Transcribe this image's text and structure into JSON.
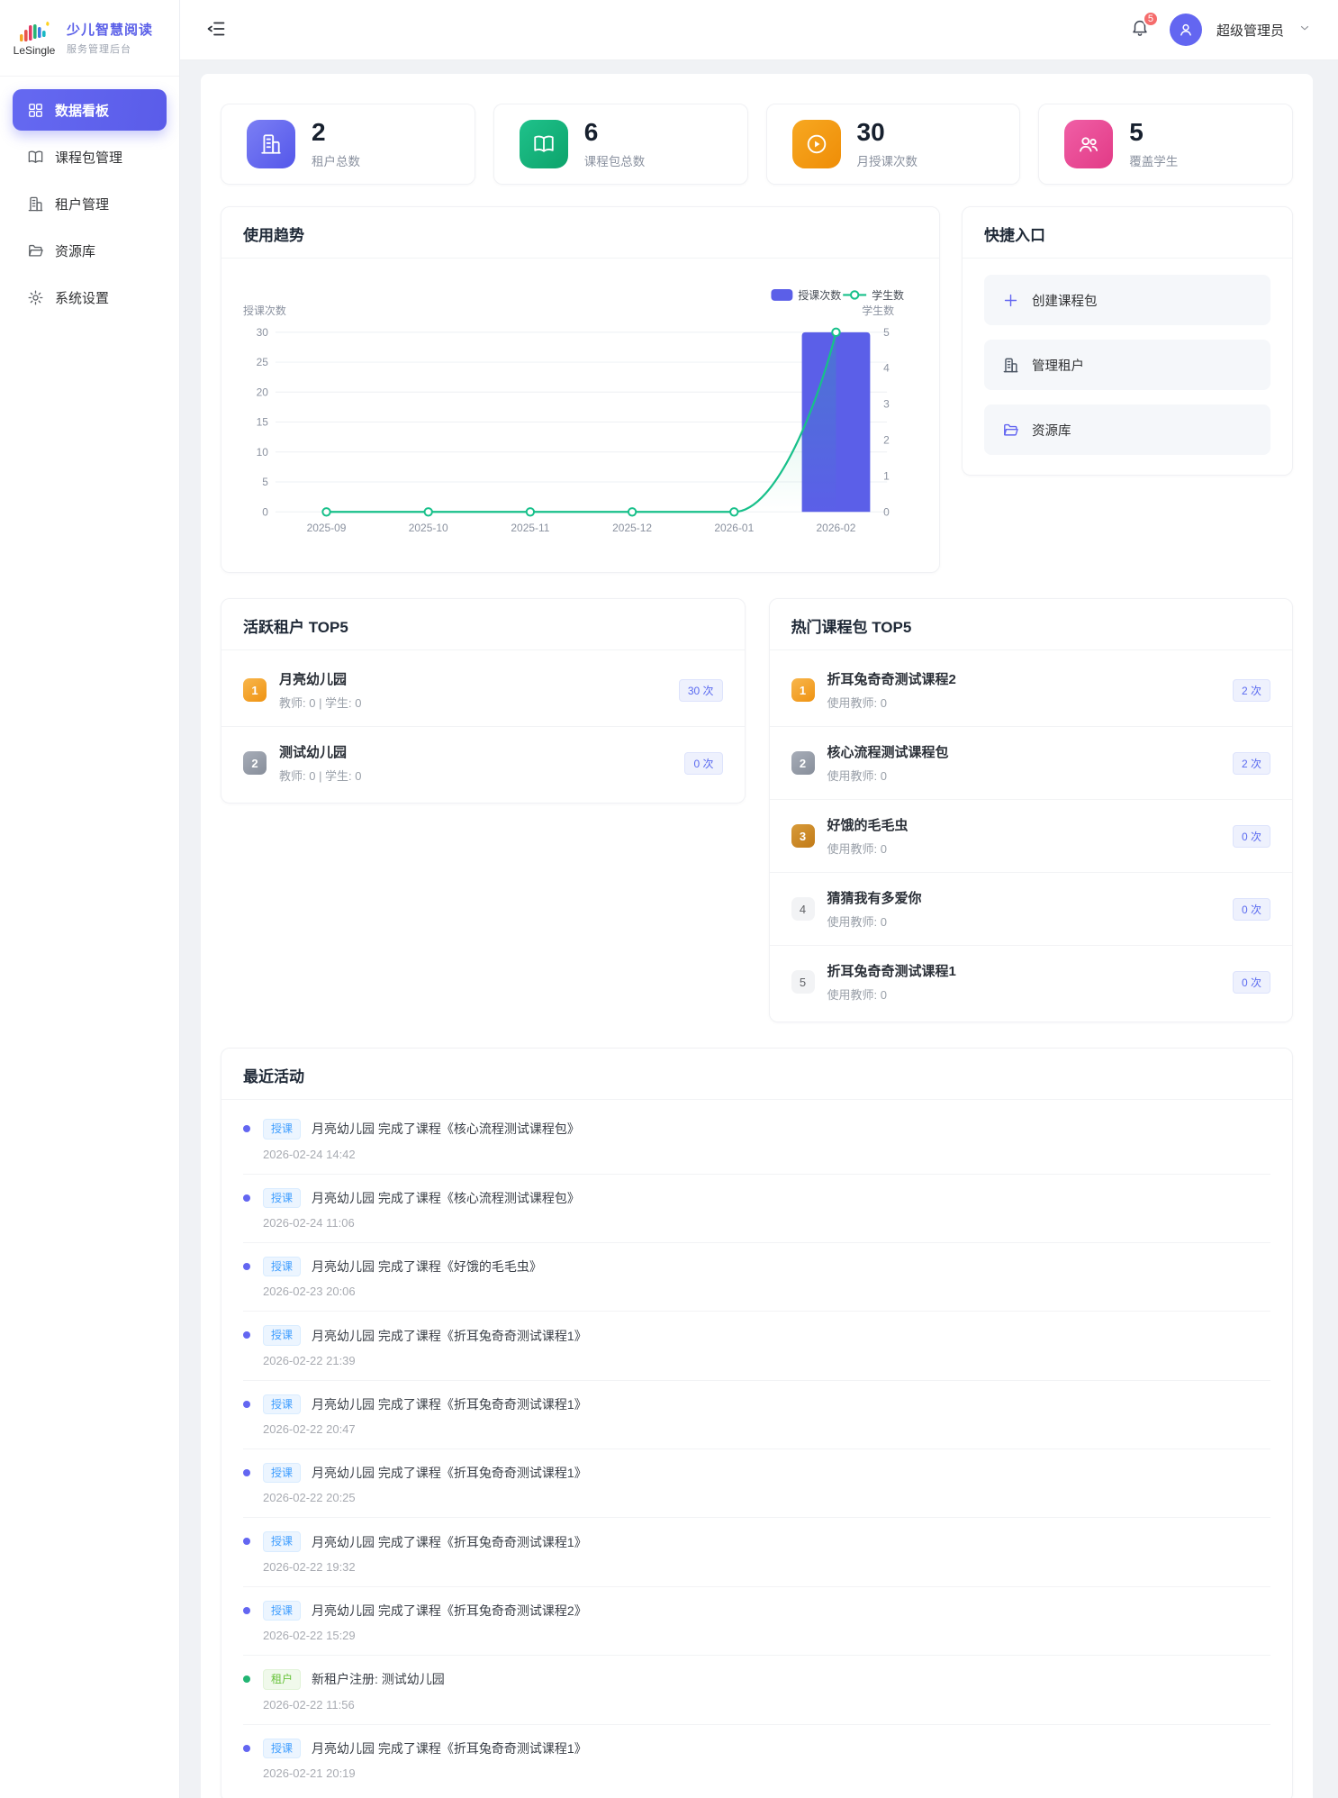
{
  "sidebar": {
    "logo": {
      "brand": "LeSingle",
      "title": "少儿智慧阅读",
      "subtitle": "服务管理后台"
    },
    "items": [
      {
        "label": "数据看板",
        "icon": "dashboard-icon",
        "active": true
      },
      {
        "label": "课程包管理",
        "icon": "book-icon",
        "active": false
      },
      {
        "label": "租户管理",
        "icon": "building-icon",
        "active": false
      },
      {
        "label": "资源库",
        "icon": "folder-icon",
        "active": false
      },
      {
        "label": "系统设置",
        "icon": "gear-icon",
        "active": false
      }
    ]
  },
  "header": {
    "notification_count": "5",
    "user_name": "超级管理员"
  },
  "stats": [
    {
      "value": "2",
      "label": "租户总数",
      "icon": "building-icon",
      "color": "#6366f1"
    },
    {
      "value": "6",
      "label": "课程包总数",
      "icon": "book-icon",
      "color": "#10b981"
    },
    {
      "value": "30",
      "label": "月授课次数",
      "icon": "play-icon",
      "color": "#f59e0b"
    },
    {
      "value": "5",
      "label": "覆盖学生",
      "icon": "students-icon",
      "color": "#ec4899"
    }
  ],
  "trend": {
    "title": "使用趋势"
  },
  "chart_data": {
    "type": "bar+line",
    "categories": [
      "2025-09",
      "2025-10",
      "2025-11",
      "2025-12",
      "2026-01",
      "2026-02"
    ],
    "series": [
      {
        "name": "授课次数",
        "type": "bar",
        "axis": "left",
        "values": [
          0,
          0,
          0,
          0,
          0,
          30
        ],
        "color": "#5b5fe8"
      },
      {
        "name": "学生数",
        "type": "line",
        "axis": "right",
        "values": [
          0,
          0,
          0,
          0,
          0,
          5
        ],
        "color": "#17c08a"
      }
    ],
    "left_axis": {
      "name": "授课次数",
      "min": 0,
      "max": 30,
      "ticks": [
        0,
        5,
        10,
        15,
        20,
        25,
        30
      ]
    },
    "right_axis": {
      "name": "学生数",
      "min": 0,
      "max": 5,
      "ticks": [
        0,
        1,
        2,
        3,
        4,
        5
      ]
    },
    "legend": [
      "授课次数",
      "学生数"
    ],
    "grid": true,
    "legend_position": "top-right"
  },
  "quick": {
    "title": "快捷入口",
    "items": [
      {
        "label": "创建课程包",
        "icon": "plus-icon"
      },
      {
        "label": "管理租户",
        "icon": "building-icon"
      },
      {
        "label": "资源库",
        "icon": "folder-icon"
      }
    ]
  },
  "tenants": {
    "title": "活跃租户 TOP5",
    "rows": [
      {
        "rank": "1",
        "name": "月亮幼儿园",
        "meta": "教师: 0 | 学生: 0",
        "count": "30 次"
      },
      {
        "rank": "2",
        "name": "测试幼儿园",
        "meta": "教师: 0 | 学生: 0",
        "count": "0 次"
      }
    ]
  },
  "courses": {
    "title": "热门课程包 TOP5",
    "rows": [
      {
        "rank": "1",
        "name": "折耳兔奇奇测试课程2",
        "meta": "使用教师: 0",
        "count": "2 次"
      },
      {
        "rank": "2",
        "name": "核心流程测试课程包",
        "meta": "使用教师: 0",
        "count": "2 次"
      },
      {
        "rank": "3",
        "name": "好饿的毛毛虫",
        "meta": "使用教师: 0",
        "count": "0 次"
      },
      {
        "rank": "4",
        "name": "猜猜我有多爱你",
        "meta": "使用教师: 0",
        "count": "0 次"
      },
      {
        "rank": "5",
        "name": "折耳兔奇奇测试课程1",
        "meta": "使用教师: 0",
        "count": "0 次"
      }
    ]
  },
  "activities": {
    "title": "最近活动",
    "items": [
      {
        "type": "授课",
        "tag_color": "blue",
        "text": "月亮幼儿园 完成了课程《核心流程测试课程包》",
        "time": "2026-02-24 14:42"
      },
      {
        "type": "授课",
        "tag_color": "blue",
        "text": "月亮幼儿园 完成了课程《核心流程测试课程包》",
        "time": "2026-02-24 11:06"
      },
      {
        "type": "授课",
        "tag_color": "blue",
        "text": "月亮幼儿园 完成了课程《好饿的毛毛虫》",
        "time": "2026-02-23 20:06"
      },
      {
        "type": "授课",
        "tag_color": "blue",
        "text": "月亮幼儿园 完成了课程《折耳兔奇奇测试课程1》",
        "time": "2026-02-22 21:39"
      },
      {
        "type": "授课",
        "tag_color": "blue",
        "text": "月亮幼儿园 完成了课程《折耳兔奇奇测试课程1》",
        "time": "2026-02-22 20:47"
      },
      {
        "type": "授课",
        "tag_color": "blue",
        "text": "月亮幼儿园 完成了课程《折耳兔奇奇测试课程1》",
        "time": "2026-02-22 20:25"
      },
      {
        "type": "授课",
        "tag_color": "blue",
        "text": "月亮幼儿园 完成了课程《折耳兔奇奇测试课程1》",
        "time": "2026-02-22 19:32"
      },
      {
        "type": "授课",
        "tag_color": "blue",
        "text": "月亮幼儿园 完成了课程《折耳兔奇奇测试课程2》",
        "time": "2026-02-22 15:29"
      },
      {
        "type": "租户",
        "tag_color": "green",
        "text": "新租户注册: 测试幼儿园",
        "time": "2026-02-22 11:56"
      },
      {
        "type": "授课",
        "tag_color": "blue",
        "text": "月亮幼儿园 完成了课程《折耳兔奇奇测试课程1》",
        "time": "2026-02-21 20:19"
      }
    ]
  }
}
